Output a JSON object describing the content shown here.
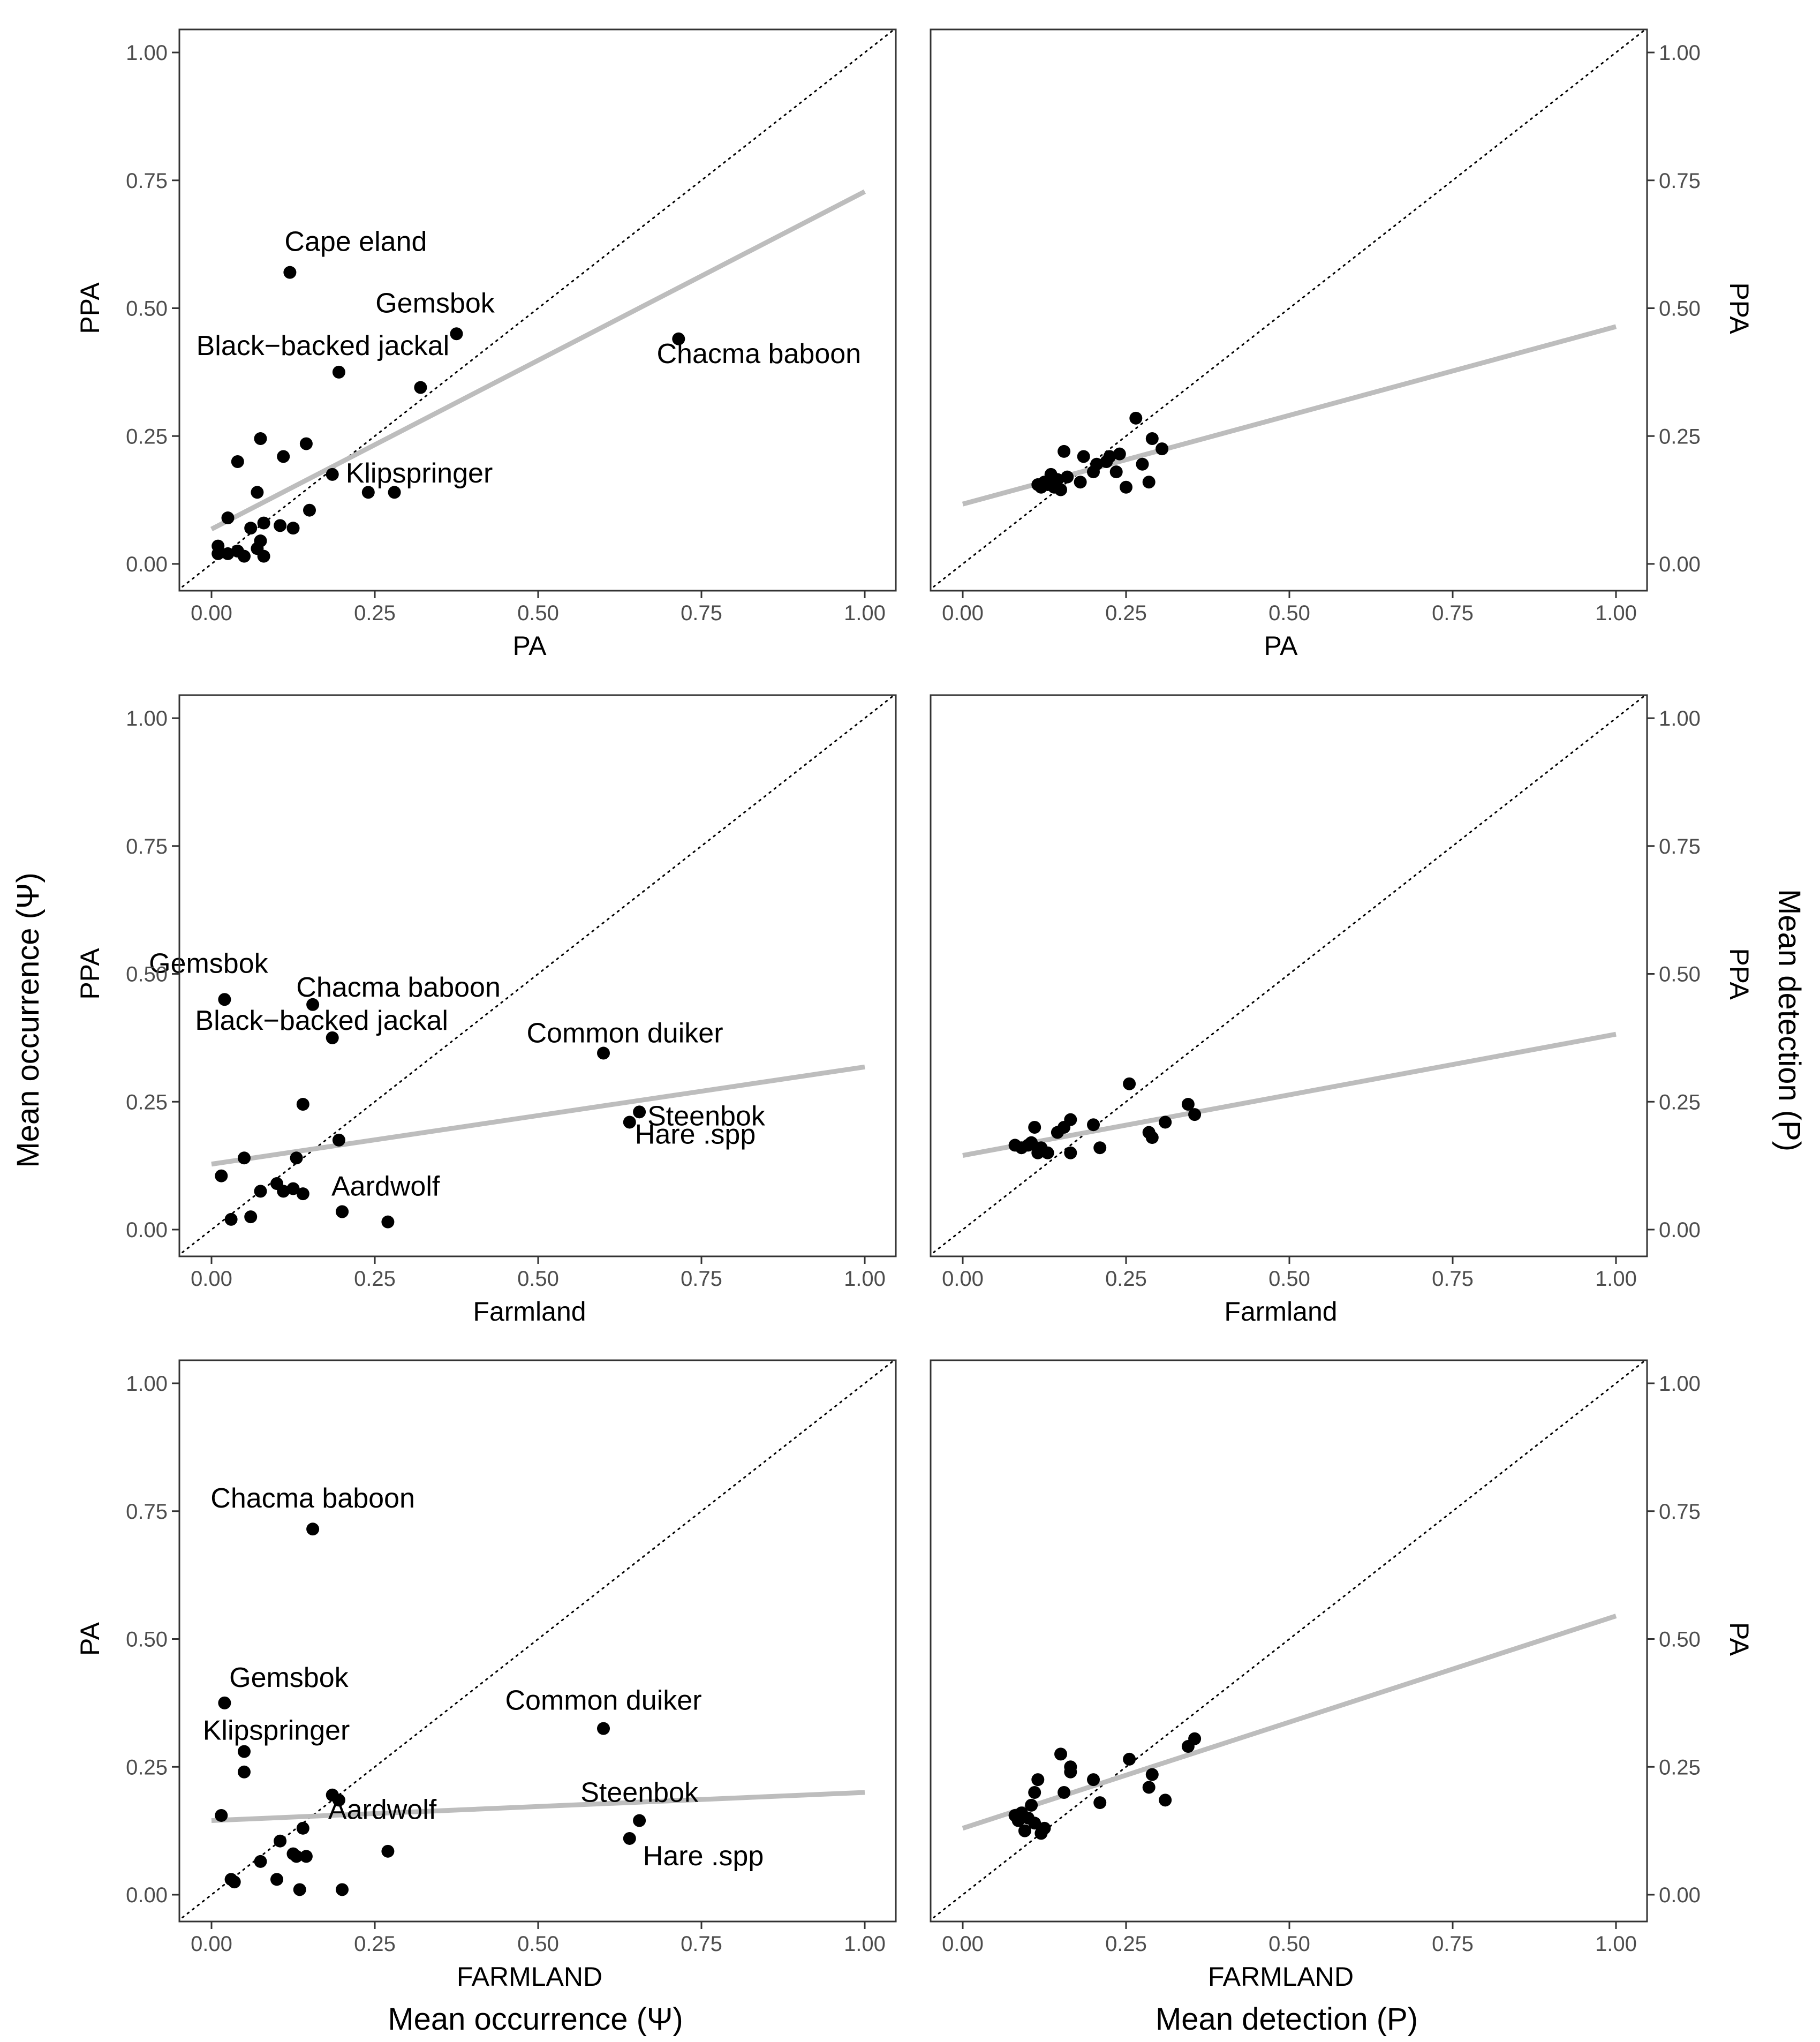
{
  "figure": {
    "left_outer_label": "Mean occurrence (Ψ)",
    "right_outer_label": "Mean detection (P)",
    "bottom_left_label": "Mean occurrence (Ψ)",
    "bottom_right_label": "Mean detection (P)"
  },
  "chart_data": [
    {
      "id": "occ-pa-ppa",
      "type": "scatter",
      "xlabel": "PA",
      "ylabel": "PPA",
      "xlim": [
        0,
        1
      ],
      "ylim": [
        0,
        1
      ],
      "xticks": [
        "0.00",
        "0.25",
        "0.50",
        "0.75",
        "1.00"
      ],
      "yticks": [
        "0.00",
        "0.25",
        "0.50",
        "0.75",
        "1.00"
      ],
      "reference_line": "y = x (dotted)",
      "regression_line": {
        "intercept": 0.068,
        "slope": 0.66
      },
      "points": [
        {
          "x": 0.01,
          "y": 0.02
        },
        {
          "x": 0.01,
          "y": 0.035
        },
        {
          "x": 0.025,
          "y": 0.02
        },
        {
          "x": 0.04,
          "y": 0.025
        },
        {
          "x": 0.05,
          "y": 0.015
        },
        {
          "x": 0.07,
          "y": 0.03
        },
        {
          "x": 0.075,
          "y": 0.045
        },
        {
          "x": 0.08,
          "y": 0.015
        },
        {
          "x": 0.06,
          "y": 0.07
        },
        {
          "x": 0.08,
          "y": 0.08
        },
        {
          "x": 0.105,
          "y": 0.075
        },
        {
          "x": 0.125,
          "y": 0.07
        },
        {
          "x": 0.15,
          "y": 0.105
        },
        {
          "x": 0.025,
          "y": 0.09
        },
        {
          "x": 0.07,
          "y": 0.14
        },
        {
          "x": 0.04,
          "y": 0.2
        },
        {
          "x": 0.075,
          "y": 0.245
        },
        {
          "x": 0.11,
          "y": 0.21
        },
        {
          "x": 0.145,
          "y": 0.235
        },
        {
          "x": 0.24,
          "y": 0.14
        },
        {
          "x": 0.28,
          "y": 0.14
        },
        {
          "x": 0.32,
          "y": 0.345
        },
        {
          "x": 0.185,
          "y": 0.175,
          "label": "Klipspringer"
        },
        {
          "x": 0.195,
          "y": 0.375,
          "label": "Black−backed jackal"
        },
        {
          "x": 0.375,
          "y": 0.45,
          "label": "Gemsbok"
        },
        {
          "x": 0.12,
          "y": 0.57,
          "label": "Cape eland"
        },
        {
          "x": 0.715,
          "y": 0.44,
          "label": "Chacma baboon"
        }
      ]
    },
    {
      "id": "det-pa-ppa",
      "type": "scatter",
      "xlabel": "PA",
      "ylabel": "PPA",
      "xlim": [
        0,
        1
      ],
      "ylim": [
        0,
        1
      ],
      "xticks": [
        "0.00",
        "0.25",
        "0.50",
        "0.75",
        "1.00"
      ],
      "yticks": [
        "0.00",
        "0.25",
        "0.50",
        "0.75",
        "1.00"
      ],
      "reference_line": "y = x (dotted)",
      "regression_line": {
        "intercept": 0.117,
        "slope": 0.347
      },
      "points": [
        {
          "x": 0.115,
          "y": 0.155
        },
        {
          "x": 0.12,
          "y": 0.15
        },
        {
          "x": 0.125,
          "y": 0.16
        },
        {
          "x": 0.13,
          "y": 0.155
        },
        {
          "x": 0.135,
          "y": 0.175
        },
        {
          "x": 0.14,
          "y": 0.15
        },
        {
          "x": 0.145,
          "y": 0.165
        },
        {
          "x": 0.15,
          "y": 0.145
        },
        {
          "x": 0.155,
          "y": 0.22
        },
        {
          "x": 0.16,
          "y": 0.17
        },
        {
          "x": 0.18,
          "y": 0.16
        },
        {
          "x": 0.185,
          "y": 0.21
        },
        {
          "x": 0.2,
          "y": 0.18
        },
        {
          "x": 0.205,
          "y": 0.195
        },
        {
          "x": 0.22,
          "y": 0.2
        },
        {
          "x": 0.225,
          "y": 0.21
        },
        {
          "x": 0.235,
          "y": 0.18
        },
        {
          "x": 0.24,
          "y": 0.215
        },
        {
          "x": 0.25,
          "y": 0.15
        },
        {
          "x": 0.265,
          "y": 0.285
        },
        {
          "x": 0.275,
          "y": 0.195
        },
        {
          "x": 0.285,
          "y": 0.16
        },
        {
          "x": 0.29,
          "y": 0.245
        },
        {
          "x": 0.305,
          "y": 0.225
        }
      ]
    },
    {
      "id": "occ-farm-ppa",
      "type": "scatter",
      "xlabel": "Farmland",
      "ylabel": "PPA",
      "xlim": [
        0,
        1
      ],
      "ylim": [
        0,
        1
      ],
      "xticks": [
        "0.00",
        "0.25",
        "0.50",
        "0.75",
        "1.00"
      ],
      "yticks": [
        "0.00",
        "0.25",
        "0.50",
        "0.75",
        "1.00"
      ],
      "reference_line": "y = x (dotted)",
      "regression_line": {
        "intercept": 0.128,
        "slope": 0.19
      },
      "points": [
        {
          "x": 0.015,
          "y": 0.105
        },
        {
          "x": 0.03,
          "y": 0.02
        },
        {
          "x": 0.05,
          "y": 0.14
        },
        {
          "x": 0.06,
          "y": 0.025
        },
        {
          "x": 0.075,
          "y": 0.075
        },
        {
          "x": 0.1,
          "y": 0.09
        },
        {
          "x": 0.11,
          "y": 0.075
        },
        {
          "x": 0.125,
          "y": 0.08
        },
        {
          "x": 0.13,
          "y": 0.14
        },
        {
          "x": 0.14,
          "y": 0.07
        },
        {
          "x": 0.14,
          "y": 0.245
        },
        {
          "x": 0.195,
          "y": 0.175
        },
        {
          "x": 0.2,
          "y": 0.035
        },
        {
          "x": 0.27,
          "y": 0.015
        },
        {
          "x": 0.02,
          "y": 0.45,
          "label": "Gemsbok"
        },
        {
          "x": 0.155,
          "y": 0.44,
          "label": "Chacma baboon"
        },
        {
          "x": 0.185,
          "y": 0.375,
          "label": "Black−backed jackal"
        },
        {
          "x": 0.6,
          "y": 0.345,
          "label": "Common duiker"
        },
        {
          "x": 0.655,
          "y": 0.23,
          "label": "Steenbok"
        },
        {
          "x": 0.64,
          "y": 0.21,
          "label": "Hare .spp"
        },
        {
          "x": 0.2,
          "y": 0.035,
          "label": "Aardwolf"
        }
      ]
    },
    {
      "id": "det-farm-ppa",
      "type": "scatter",
      "xlabel": "Farmland",
      "ylabel": "PPA",
      "xlim": [
        0,
        1
      ],
      "ylim": [
        0,
        1
      ],
      "xticks": [
        "0.00",
        "0.25",
        "0.50",
        "0.75",
        "1.00"
      ],
      "yticks": [
        "0.00",
        "0.25",
        "0.50",
        "0.75",
        "1.00"
      ],
      "reference_line": "y = x (dotted)",
      "regression_line": {
        "intercept": 0.145,
        "slope": 0.237
      },
      "points": [
        {
          "x": 0.08,
          "y": 0.165
        },
        {
          "x": 0.09,
          "y": 0.16
        },
        {
          "x": 0.1,
          "y": 0.165
        },
        {
          "x": 0.105,
          "y": 0.17
        },
        {
          "x": 0.11,
          "y": 0.2
        },
        {
          "x": 0.115,
          "y": 0.15
        },
        {
          "x": 0.12,
          "y": 0.16
        },
        {
          "x": 0.13,
          "y": 0.15
        },
        {
          "x": 0.145,
          "y": 0.19
        },
        {
          "x": 0.155,
          "y": 0.2
        },
        {
          "x": 0.165,
          "y": 0.215
        },
        {
          "x": 0.165,
          "y": 0.15
        },
        {
          "x": 0.2,
          "y": 0.205
        },
        {
          "x": 0.21,
          "y": 0.16
        },
        {
          "x": 0.255,
          "y": 0.285
        },
        {
          "x": 0.285,
          "y": 0.19
        },
        {
          "x": 0.29,
          "y": 0.18
        },
        {
          "x": 0.31,
          "y": 0.21
        },
        {
          "x": 0.345,
          "y": 0.245
        },
        {
          "x": 0.355,
          "y": 0.225
        }
      ]
    },
    {
      "id": "occ-farm-pa",
      "type": "scatter",
      "xlabel": "FARMLAND",
      "ylabel": "PA",
      "xlim": [
        0,
        1
      ],
      "ylim": [
        0,
        1
      ],
      "xticks": [
        "0.00",
        "0.25",
        "0.50",
        "0.75",
        "1.00"
      ],
      "yticks": [
        "0.00",
        "0.25",
        "0.50",
        "0.75",
        "1.00"
      ],
      "reference_line": "y = x (dotted)",
      "regression_line": {
        "intercept": 0.145,
        "slope": 0.055
      },
      "points": [
        {
          "x": 0.015,
          "y": 0.155
        },
        {
          "x": 0.03,
          "y": 0.03
        },
        {
          "x": 0.035,
          "y": 0.025
        },
        {
          "x": 0.05,
          "y": 0.24
        },
        {
          "x": 0.075,
          "y": 0.065
        },
        {
          "x": 0.1,
          "y": 0.03
        },
        {
          "x": 0.105,
          "y": 0.105
        },
        {
          "x": 0.125,
          "y": 0.08
        },
        {
          "x": 0.13,
          "y": 0.075
        },
        {
          "x": 0.135,
          "y": 0.01
        },
        {
          "x": 0.14,
          "y": 0.13
        },
        {
          "x": 0.145,
          "y": 0.075
        },
        {
          "x": 0.185,
          "y": 0.195
        },
        {
          "x": 0.2,
          "y": 0.01
        },
        {
          "x": 0.27,
          "y": 0.085
        },
        {
          "x": 0.155,
          "y": 0.715,
          "label": "Chacma baboon"
        },
        {
          "x": 0.02,
          "y": 0.375,
          "label": "Gemsbok"
        },
        {
          "x": 0.05,
          "y": 0.28,
          "label": "Klipspringer"
        },
        {
          "x": 0.6,
          "y": 0.325,
          "label": "Common duiker"
        },
        {
          "x": 0.655,
          "y": 0.145,
          "label": "Steenbok"
        },
        {
          "x": 0.64,
          "y": 0.11,
          "label": "Hare .spp"
        },
        {
          "x": 0.195,
          "y": 0.185,
          "label": "Aardwolf"
        }
      ]
    },
    {
      "id": "det-farm-pa",
      "type": "scatter",
      "xlabel": "FARMLAND",
      "ylabel": "PA",
      "xlim": [
        0,
        1
      ],
      "ylim": [
        0,
        1
      ],
      "xticks": [
        "0.00",
        "0.25",
        "0.50",
        "0.75",
        "1.00"
      ],
      "yticks": [
        "0.00",
        "0.25",
        "0.50",
        "0.75",
        "1.00"
      ],
      "reference_line": "y = x (dotted)",
      "regression_line": {
        "intercept": 0.13,
        "slope": 0.415
      },
      "points": [
        {
          "x": 0.08,
          "y": 0.155
        },
        {
          "x": 0.085,
          "y": 0.145
        },
        {
          "x": 0.09,
          "y": 0.16
        },
        {
          "x": 0.095,
          "y": 0.125
        },
        {
          "x": 0.1,
          "y": 0.15
        },
        {
          "x": 0.105,
          "y": 0.175
        },
        {
          "x": 0.11,
          "y": 0.2
        },
        {
          "x": 0.11,
          "y": 0.14
        },
        {
          "x": 0.115,
          "y": 0.225
        },
        {
          "x": 0.12,
          "y": 0.12
        },
        {
          "x": 0.125,
          "y": 0.13
        },
        {
          "x": 0.15,
          "y": 0.275
        },
        {
          "x": 0.155,
          "y": 0.2
        },
        {
          "x": 0.165,
          "y": 0.25
        },
        {
          "x": 0.165,
          "y": 0.24
        },
        {
          "x": 0.2,
          "y": 0.225
        },
        {
          "x": 0.21,
          "y": 0.18
        },
        {
          "x": 0.255,
          "y": 0.265
        },
        {
          "x": 0.285,
          "y": 0.21
        },
        {
          "x": 0.29,
          "y": 0.235
        },
        {
          "x": 0.31,
          "y": 0.185
        },
        {
          "x": 0.345,
          "y": 0.29
        },
        {
          "x": 0.355,
          "y": 0.305
        }
      ]
    }
  ]
}
